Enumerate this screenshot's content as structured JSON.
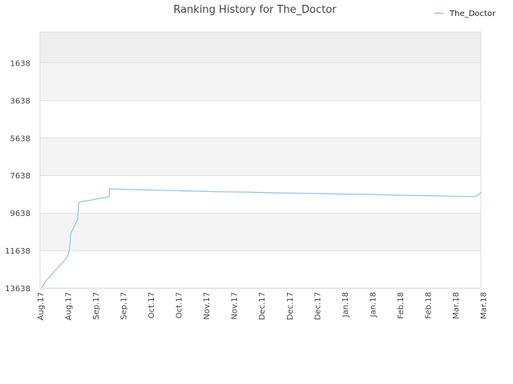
{
  "chart_data": {
    "type": "line",
    "title": "Ranking History for The_Doctor",
    "xlabel": "",
    "ylabel": "",
    "legend": {
      "placement": "top-right"
    },
    "grid": true,
    "y_inverted": true,
    "ylim": [
      13638,
      0
    ],
    "y_ticks": [
      1638,
      3638,
      5638,
      7638,
      9638,
      11638,
      13638
    ],
    "y_tick_labels": [
      "1638",
      "3638",
      "5638",
      "7638",
      "9638",
      "11638",
      "13638"
    ],
    "x_tick_labels": [
      "Aug.17",
      "Aug.17",
      "Sep.17",
      "Sep.17",
      "Oct.17",
      "Oct.17",
      "Nov.17",
      "Nov.17",
      "Dec.17",
      "Dec.17",
      "Dec.17",
      "Jan.18",
      "Jan.18",
      "Feb.18",
      "Feb.18",
      "Mar.18",
      "Mar.18"
    ],
    "x_range_days": [
      0,
      223
    ],
    "x_tick_days": [
      0,
      14,
      28,
      42,
      56,
      70,
      84,
      98,
      112,
      126,
      140,
      154,
      168,
      182,
      196,
      210,
      224
    ],
    "series": [
      {
        "name": "The_Doctor",
        "color": "#8ec6ee",
        "points": [
          [
            1,
            13620
          ],
          [
            3,
            13250
          ],
          [
            6,
            12900
          ],
          [
            9,
            12550
          ],
          [
            12,
            12200
          ],
          [
            14,
            11950
          ],
          [
            15,
            11500
          ],
          [
            15.5,
            10750
          ],
          [
            18,
            10200
          ],
          [
            19,
            9980
          ],
          [
            19.5,
            9080
          ],
          [
            22,
            9020
          ],
          [
            26,
            8950
          ],
          [
            30,
            8870
          ],
          [
            34,
            8800
          ],
          [
            35,
            8750
          ],
          [
            35.1,
            8350
          ],
          [
            42,
            8380
          ],
          [
            60,
            8430
          ],
          [
            72,
            8460
          ],
          [
            90,
            8510
          ],
          [
            104,
            8530
          ],
          [
            120,
            8570
          ],
          [
            136,
            8590
          ],
          [
            150,
            8630
          ],
          [
            166,
            8650
          ],
          [
            180,
            8690
          ],
          [
            196,
            8720
          ],
          [
            210,
            8750
          ],
          [
            220,
            8770
          ],
          [
            222,
            8650
          ],
          [
            223,
            8540
          ]
        ]
      }
    ]
  }
}
